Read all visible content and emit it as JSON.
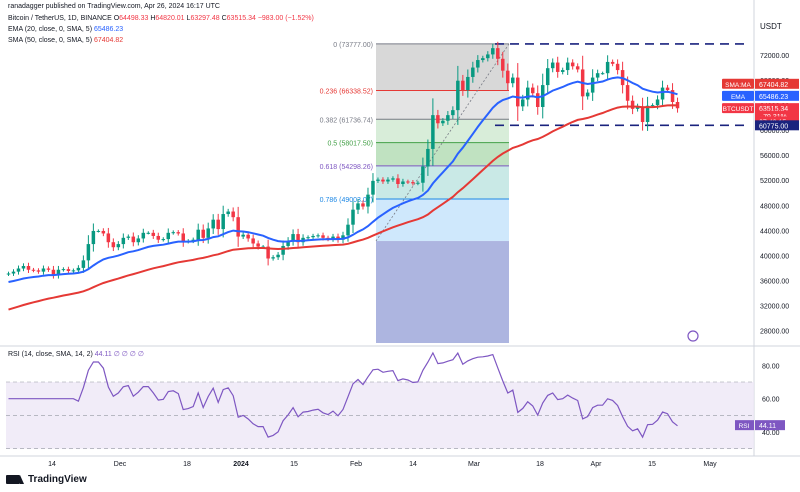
{
  "header": {
    "published": "ranadagger published on TradingView.com, Apr 26, 2024 16:17 UTC",
    "symbol": "Bitcoin / TetherUS, 1D, BINANCE",
    "o_label": "O",
    "o_val": "64498.33",
    "h_label": "H",
    "h_val": "64820.01",
    "l_label": "L",
    "l_val": "63297.48",
    "c_label": "C",
    "c_val": "63515.34",
    "change": "−983.00 (−1.52%)",
    "ema_label": "EMA (20, close, 0, SMA, 5)",
    "ema_val": "65486.23",
    "sma_label": "SMA (50, close, 0, SMA, 5)",
    "sma_val": "67404.82",
    "rsi_label": "RSI (14, close, SMA, 14, 2)",
    "rsi_val": "44.11",
    "rsi_extra": "∅ ∅ ∅ ∅"
  },
  "currency": "USDT",
  "footer": {
    "brand": "TradingView"
  },
  "colors": {
    "up": "#089981",
    "down": "#f23645",
    "ema": "#2962ff",
    "sma": "#e53935",
    "rsi": "#7e57c2",
    "dash": "#1a237e"
  },
  "chart_data": [
    {
      "type": "candlestick",
      "title": "Bitcoin / TetherUS, 1D, BINANCE",
      "x_ticks": [
        "14",
        "Dec",
        "18",
        "2024",
        "15",
        "Feb",
        "14",
        "Mar",
        "18",
        "Apr",
        "15",
        "May"
      ],
      "y_ticks": [
        72000,
        68000,
        64000,
        60000,
        56000,
        52000,
        48000,
        44000,
        40000,
        36000,
        32000,
        28000
      ],
      "ylim": [
        26000,
        76000
      ],
      "close_series": [
        37100,
        37400,
        37900,
        38300,
        37700,
        37600,
        37400,
        37900,
        37700,
        36900,
        37700,
        37800,
        37500,
        37600,
        38000,
        39200,
        41800,
        43900,
        43900,
        43500,
        42100,
        41300,
        41800,
        42800,
        43000,
        42100,
        42700,
        43600,
        43600,
        43100,
        42500,
        42600,
        43600,
        43700,
        43500,
        42200,
        42300,
        42500,
        44100,
        42800,
        44300,
        45700,
        44200,
        46600,
        47000,
        46100,
        43000,
        43300,
        42700,
        41900,
        41400,
        41400,
        39500,
        39700,
        40100,
        41500,
        42300,
        43400,
        42100,
        42800,
        42900,
        43100,
        43200,
        42800,
        42600,
        43000,
        42500,
        43200,
        44900,
        47300,
        48300,
        47800,
        49700,
        51900,
        52100,
        51800,
        52100,
        52300,
        51400,
        51800,
        51700,
        51500,
        51600,
        54200,
        57000,
        62400,
        61100,
        61500,
        62400,
        63200,
        67900,
        66400,
        68500,
        70000,
        71200,
        71500,
        72100,
        73100,
        71400,
        69500,
        67500,
        68400,
        63800,
        64900,
        66800,
        65900,
        63700,
        67200,
        69900,
        70800,
        69300,
        69600,
        70800,
        70200,
        69700,
        65400,
        66000,
        68400,
        69100,
        69100,
        70900,
        70600,
        69600,
        67200,
        64700,
        63400,
        63800,
        61300,
        63900,
        64000,
        64900,
        66800,
        66400,
        64500,
        63500
      ],
      "ema": {
        "name": "EMA",
        "last": 65486.23
      },
      "sma": {
        "name": "SMA",
        "last": 67404.82
      },
      "fibonacci": [
        {
          "level": "0",
          "price": 73777.0
        },
        {
          "level": "0.236",
          "price": 66338.52
        },
        {
          "level": "0.382",
          "price": 61736.74
        },
        {
          "level": "0.5",
          "price": 58017.5
        },
        {
          "level": "0.618",
          "price": 54298.26
        },
        {
          "level": "0.786",
          "price": 49003.07
        }
      ],
      "horizontal_lines": [
        73777.0,
        60775.0
      ],
      "price_tags": [
        {
          "label": "SMA:MA",
          "value": "67404.82"
        },
        {
          "label": "EMA",
          "value": "65486.23"
        },
        {
          "label": "BTCUSDT",
          "value": "63515.34"
        },
        {
          "label": "",
          "value": "−79.31%"
        },
        {
          "label": "",
          "value": "07:42:15"
        },
        {
          "label": "",
          "value": "60775.00"
        }
      ]
    },
    {
      "type": "line",
      "title": "RSI (14, close, SMA, 14, 2)",
      "y_ticks": [
        80.0,
        60.0,
        40.0
      ],
      "ylim": [
        28,
        88
      ],
      "bands": [
        30,
        70
      ],
      "last": 44.11
    }
  ]
}
